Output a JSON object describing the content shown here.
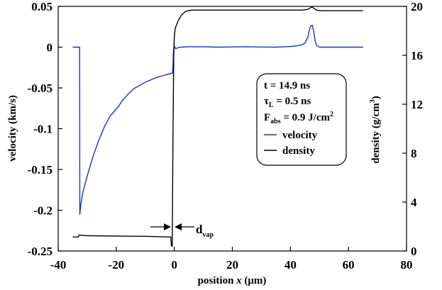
{
  "chart_data": {
    "type": "line",
    "xlabel_prefix": "position ",
    "xlabel_var": "x",
    "xlabel_unit": " (μm)",
    "ylabel_left": "velocity (km/s)",
    "ylabel_right_prefix": "density (g/cm",
    "ylabel_right_sup": "3",
    "ylabel_right_suffix": ")",
    "xlim": [
      -40,
      80
    ],
    "ylim_left": [
      -0.25,
      0.05
    ],
    "ylim_right": [
      0,
      20
    ],
    "x_ticks": [
      -40,
      -20,
      0,
      20,
      40,
      60,
      80
    ],
    "x_tick_labels": [
      "-40",
      "-20",
      "0",
      "20",
      "40",
      "60",
      "80"
    ],
    "y_left_ticks": [
      0.05,
      0,
      -0.05,
      -0.1,
      -0.15,
      -0.2,
      -0.25
    ],
    "y_left_tick_labels": [
      "0.05",
      "0",
      "-0.05",
      "-0.1",
      "-0.15",
      "-0.2",
      "-0.25"
    ],
    "y_right_ticks": [
      20,
      16,
      12,
      8,
      4,
      0
    ],
    "y_right_tick_labels": [
      "20",
      "16",
      "12",
      "8",
      "4",
      "0"
    ],
    "annotation": {
      "main": "d",
      "sub": "vap"
    },
    "legend": {
      "placement": "right",
      "params": [
        {
          "main": "t = 14.9 ns",
          "sub": "",
          "tail": "",
          "sup": ""
        },
        {
          "main": "τ",
          "sub": "L",
          "tail": " = 0.5 ns",
          "sup": ""
        },
        {
          "main": "F",
          "sub": "abs",
          "tail": " = 0.9 J/cm",
          "sup": "2"
        }
      ]
    },
    "series": [
      {
        "name": "velocity",
        "color": "#1f2fd6",
        "axis": "left",
        "x": [
          -35,
          -32.8,
          -32.6,
          -32.55,
          -32.2,
          -31.5,
          -30,
          -28,
          -26,
          -24,
          -22,
          -20,
          -19.3,
          -18,
          -16,
          -14,
          -12,
          -10,
          -8,
          -6,
          -4,
          -2,
          -0.8,
          -0.6,
          -0.4,
          -0.3,
          0,
          0.3,
          0.5,
          1,
          2,
          5,
          10,
          15,
          20,
          25,
          30,
          35,
          38,
          40,
          42,
          44,
          45,
          46,
          46.5,
          47,
          47.5,
          48,
          48.5,
          49,
          50,
          55,
          60,
          65
        ],
        "y": [
          0,
          0,
          0,
          -0.205,
          -0.193,
          -0.178,
          -0.158,
          -0.134,
          -0.114,
          -0.097,
          -0.084,
          -0.076,
          -0.073,
          -0.066,
          -0.058,
          -0.051,
          -0.047,
          -0.043,
          -0.04,
          -0.037,
          -0.035,
          -0.033,
          -0.032,
          -0.032,
          -0.018,
          -0.005,
          0.002,
          -0.001,
          -0.002,
          -0.001,
          0,
          0.0005,
          0.0005,
          0,
          0.0003,
          0.0005,
          0.0002,
          0,
          0.0005,
          0.0008,
          0.0015,
          0.003,
          0.005,
          0.012,
          0.021,
          0.026,
          0.027,
          0.02,
          0.008,
          0.002,
          0,
          0,
          0,
          0
        ]
      },
      {
        "name": "density",
        "color": "#000000",
        "axis": "right",
        "x": [
          -35,
          -33,
          -32.8,
          -32.6,
          -30,
          -20,
          -10,
          -2,
          -1.2,
          -1,
          -0.7,
          -0.5,
          -0.2,
          0,
          0.3,
          0.8,
          1.5,
          2.5,
          4,
          6,
          10,
          20,
          30,
          40,
          44,
          46,
          47,
          47.5,
          48,
          49,
          50,
          55,
          60,
          65
        ],
        "y": [
          1.15,
          1.15,
          1.3,
          1.3,
          1.25,
          1.22,
          1.2,
          1.15,
          1.15,
          0.4,
          0.4,
          8,
          16,
          17.5,
          18.2,
          18.5,
          18.9,
          19.3,
          19.6,
          19.7,
          19.7,
          19.7,
          19.7,
          19.7,
          19.7,
          19.75,
          19.9,
          19.95,
          19.85,
          19.7,
          19.65,
          19.65,
          19.65,
          19.65
        ]
      }
    ]
  }
}
